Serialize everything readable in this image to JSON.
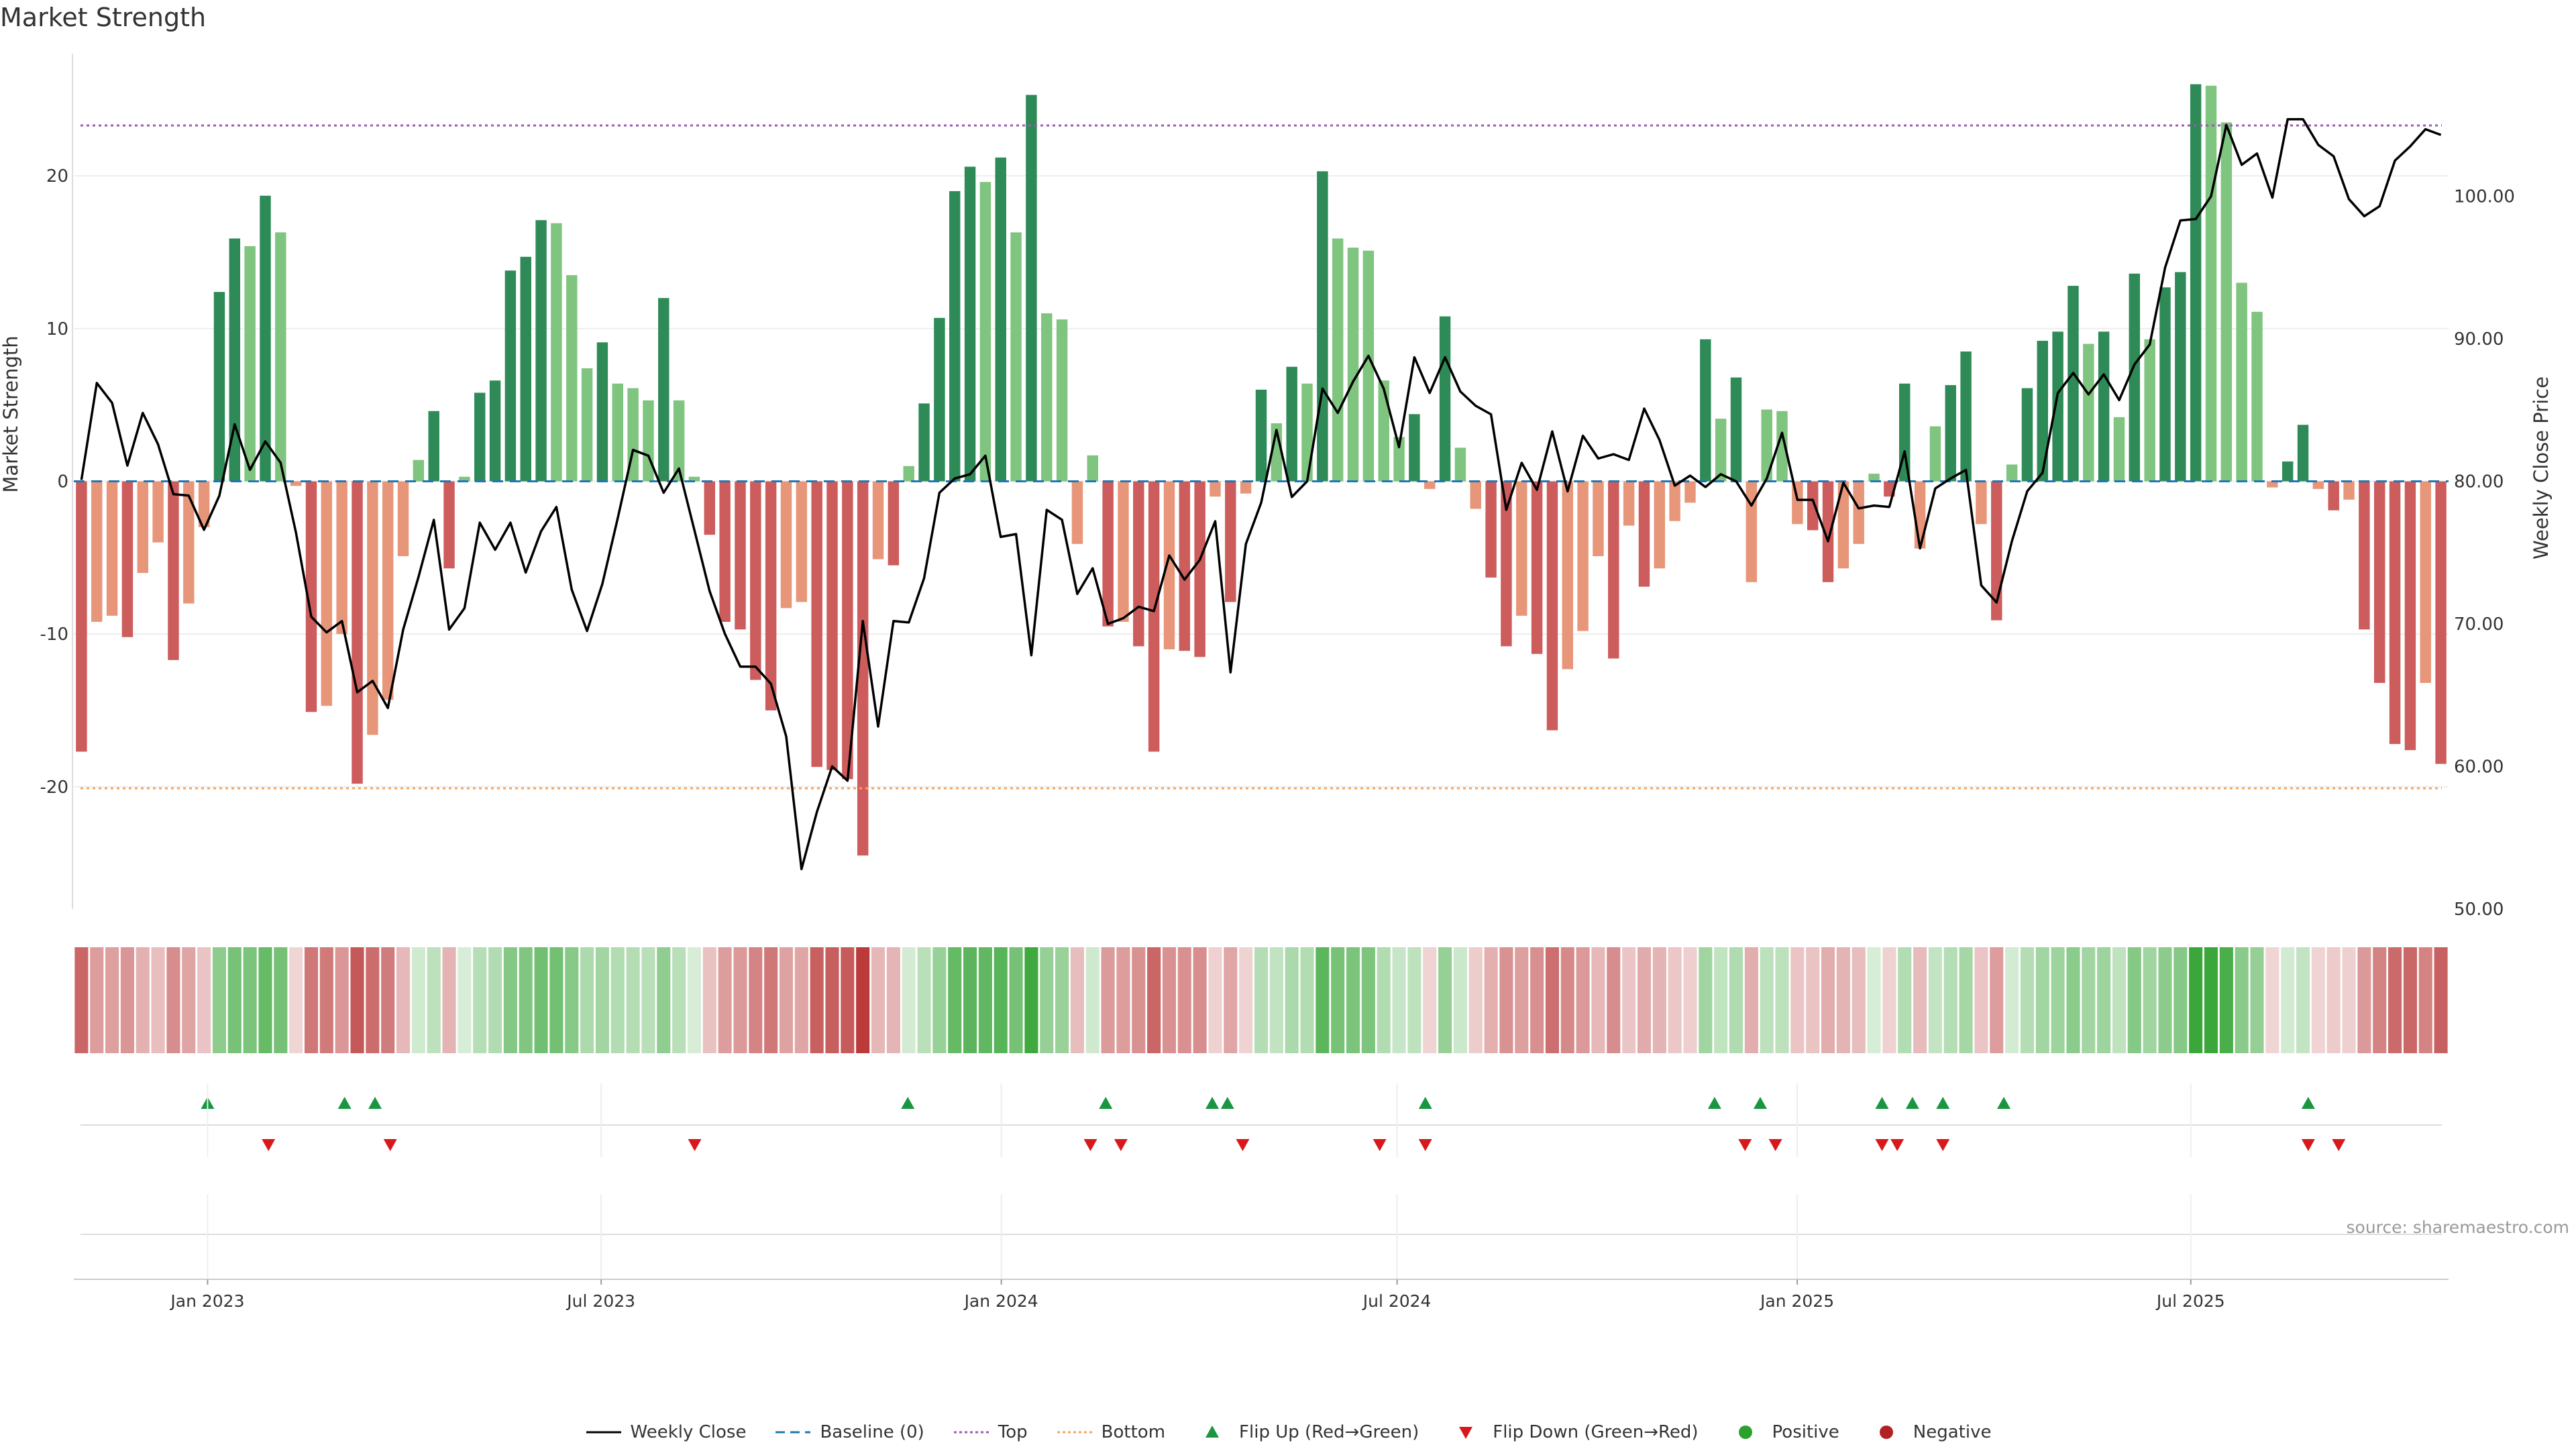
{
  "title": "Market Strength",
  "source": "source: sharemaestro.com",
  "colors": {
    "strong_pos": "#2e8b57",
    "weak_pos": "#7fc47f",
    "strong_neg": "#cd5c5c",
    "weak_neg": "#e8967a",
    "price": "#000000",
    "baseline": "#1f77b4",
    "top": "#9b59b6",
    "bottom": "#f4a460",
    "flip_up": "#1a9641",
    "flip_down": "#d7191c",
    "positive": "#2ca02c",
    "negative": "#b22222"
  },
  "legend": [
    {
      "key": "weekly_close",
      "label": "Weekly Close",
      "icon": "line-solid-icon",
      "color": "#000000"
    },
    {
      "key": "baseline",
      "label": "Baseline (0)",
      "icon": "line-dashed-icon",
      "color": "#1f77b4"
    },
    {
      "key": "top",
      "label": "Top",
      "icon": "line-dotted-icon",
      "color": "#9b59b6"
    },
    {
      "key": "bottom",
      "label": "Bottom",
      "icon": "line-dotted-icon",
      "color": "#f4a460"
    },
    {
      "key": "flip_up",
      "label": "Flip Up (Red→Green)",
      "icon": "triangle-up-icon",
      "color": "#1a9641"
    },
    {
      "key": "flip_down",
      "label": "Flip Down (Green→Red)",
      "icon": "triangle-down-icon",
      "color": "#d7191c"
    },
    {
      "key": "positive",
      "label": "Positive",
      "icon": "circle-icon",
      "color": "#2ca02c"
    },
    {
      "key": "negative",
      "label": "Negative",
      "icon": "circle-icon",
      "color": "#b22222"
    }
  ],
  "chart_data": {
    "type": "bar",
    "title": "Market Strength",
    "x_axis": {
      "start_date": "2022-11-04",
      "end_date": "2025-10-24",
      "tick_labels": [
        "Jan 2023",
        "Jul 2023",
        "Jan 2024",
        "Jul 2024",
        "Jan 2025",
        "Jul 2025"
      ],
      "tick_dates": [
        "2023-01-01",
        "2023-07-01",
        "2024-01-01",
        "2024-07-01",
        "2025-01-01",
        "2025-07-01"
      ]
    },
    "left_axis": {
      "label": "Market Strength",
      "min": -28,
      "max": 28,
      "ticks": [
        -20,
        -10,
        0,
        10,
        20
      ]
    },
    "right_axis": {
      "label": "Weekly Close Price",
      "min": 50,
      "max": 110,
      "ticks": [
        "50.00",
        "60.00",
        "70.00",
        "80.00",
        "90.00",
        "100.00"
      ]
    },
    "reference_lines": {
      "baseline": 0,
      "top": 23.3,
      "bottom": -20.1
    },
    "grid": true,
    "legend_position": "bottom",
    "strength": [
      -17.7,
      -9.2,
      -8.8,
      -10.2,
      -6.0,
      -4.0,
      -11.7,
      -8.0,
      -3.0,
      12.4,
      15.9,
      15.4,
      18.7,
      16.3,
      -0.3,
      -15.1,
      -14.7,
      -10.0,
      -19.8,
      -16.6,
      -14.3,
      -4.9,
      1.4,
      4.6,
      -5.7,
      0.3,
      5.8,
      6.6,
      13.8,
      14.7,
      17.1,
      16.9,
      13.5,
      7.4,
      9.1,
      6.4,
      6.1,
      5.3,
      12.0,
      5.3,
      0.3,
      -3.5,
      -9.2,
      -9.7,
      -13.0,
      -15.0,
      -8.3,
      -7.9,
      -18.7,
      -18.9,
      -19.5,
      -24.5,
      -5.1,
      -5.5,
      1.0,
      5.1,
      10.7,
      19.0,
      20.6,
      19.6,
      21.2,
      16.3,
      25.3,
      11.0,
      10.6,
      -4.1,
      1.7,
      -9.5,
      -9.2,
      -10.8,
      -17.7,
      -11.0,
      -11.1,
      -11.5,
      -1.0,
      -7.9,
      -0.8,
      6.0,
      3.8,
      7.5,
      6.4,
      20.3,
      15.9,
      15.3,
      15.1,
      6.6,
      2.9,
      4.4,
      -0.5,
      10.8,
      2.2,
      -1.8,
      -6.3,
      -10.8,
      -8.8,
      -11.3,
      -16.3,
      -12.3,
      -9.8,
      -4.9,
      -11.6,
      -2.9,
      -6.9,
      -5.7,
      -2.6,
      -1.4,
      9.3,
      4.1,
      6.8,
      -6.6,
      4.7,
      4.6,
      -2.8,
      -3.2,
      -6.6,
      -5.7,
      -4.1,
      0.5,
      -1.0,
      6.4,
      -4.4,
      3.6,
      6.3,
      8.5,
      -2.8,
      -9.1,
      1.1,
      6.1,
      9.2,
      9.8,
      12.8,
      9.0,
      9.8,
      4.2,
      13.6,
      9.3,
      12.7,
      13.7,
      26.0,
      25.9,
      23.5,
      13.0,
      11.1,
      -0.4,
      1.3,
      3.7,
      -0.5,
      -1.9,
      -1.2,
      -9.7,
      -13.2,
      -17.2,
      -17.6,
      -13.2,
      -18.5
    ],
    "weekly_close": [
      80.1,
      86.9,
      85.5,
      81.1,
      84.8,
      82.6,
      79.1,
      79.0,
      76.6,
      79.0,
      84.0,
      80.8,
      82.8,
      81.3,
      76.4,
      70.5,
      69.4,
      70.2,
      65.2,
      66.0,
      64.1,
      69.6,
      73.3,
      77.3,
      69.6,
      71.1,
      77.1,
      75.2,
      77.1,
      73.6,
      76.5,
      78.2,
      72.4,
      69.5,
      72.8,
      77.4,
      82.2,
      81.8,
      79.2,
      80.9,
      76.6,
      72.3,
      69.3,
      67.0,
      67.0,
      65.8,
      62.1,
      52.8,
      56.8,
      60.0,
      59.0,
      70.2,
      62.8,
      70.2,
      70.1,
      73.2,
      79.2,
      80.2,
      80.5,
      81.8,
      76.1,
      76.3,
      67.8,
      78.0,
      77.3,
      72.1,
      73.9,
      70.0,
      70.4,
      71.2,
      70.9,
      74.8,
      73.1,
      74.5,
      77.2,
      66.6,
      75.6,
      78.5,
      83.6,
      78.9,
      80.0,
      86.5,
      84.8,
      87.0,
      88.8,
      86.5,
      82.4,
      88.7,
      86.2,
      88.7,
      86.3,
      85.3,
      84.7,
      78.0,
      81.3,
      79.4,
      83.5,
      79.3,
      83.2,
      81.6,
      81.9,
      81.5,
      85.1,
      82.9,
      79.7,
      80.4,
      79.6,
      80.5,
      80.0,
      78.3,
      80.2,
      83.4,
      78.7,
      78.7,
      75.8,
      79.9,
      78.1,
      78.3,
      78.2,
      82.1,
      75.3,
      79.5,
      80.2,
      80.8,
      72.7,
      71.5,
      75.8,
      79.3,
      80.6,
      86.2,
      87.6,
      86.1,
      87.5,
      85.7,
      88.2,
      89.6,
      95.0,
      98.3,
      98.4,
      100.0,
      105.0,
      102.2,
      103.0,
      99.9,
      105.4,
      105.4,
      103.6,
      102.8,
      99.8,
      98.6,
      99.3,
      102.5,
      103.5,
      104.7,
      104.3
    ],
    "flip_up_dates": [
      "2023-01-01",
      "2023-03-05",
      "2023-03-19",
      "2023-11-19",
      "2024-02-18",
      "2024-04-07",
      "2024-04-14",
      "2024-07-14",
      "2024-11-24",
      "2024-12-15",
      "2025-02-09",
      "2025-02-23",
      "2025-03-09",
      "2025-04-06",
      "2025-08-24"
    ],
    "flip_down_dates": [
      "2023-01-29",
      "2023-03-26",
      "2023-08-13",
      "2024-02-11",
      "2024-02-25",
      "2024-04-21",
      "2024-06-23",
      "2024-07-14",
      "2024-12-08",
      "2024-12-22",
      "2025-02-09",
      "2025-02-16",
      "2025-03-09",
      "2025-08-24",
      "2025-09-07"
    ]
  }
}
